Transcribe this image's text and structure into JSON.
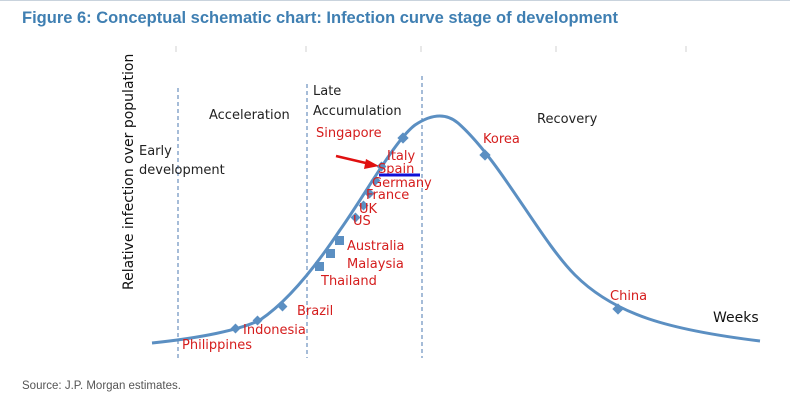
{
  "figure": {
    "title": "Figure 6: Conceptual schematic chart: Infection curve stage of development",
    "source": "Source: J.P. Morgan estimates."
  },
  "axes": {
    "ylabel": "Relative infection over population",
    "xlabel": "Weeks"
  },
  "phases": {
    "early_line1": "Early",
    "early_line2": "development",
    "acceleration": "Acceleration",
    "late_line1": "Late",
    "late_line2": "Accumulation",
    "recovery": "Recovery"
  },
  "countries": {
    "philippines": "Philippines",
    "indonesia": "Indonesia",
    "brazil": "Brazil",
    "thailand": "Thailand",
    "malaysia": "Malaysia",
    "australia": "Australia",
    "us": "US",
    "uk": "UK",
    "france": "France",
    "germany": "Germany",
    "spain": "Spain",
    "italy": "Italy",
    "singapore": "Singapore",
    "korea": "Korea",
    "china": "China"
  },
  "colors": {
    "curve": "#5b8fc2",
    "country_text": "#d51d1d",
    "title": "#3f7fb2",
    "highlight_bar": "#1010d8",
    "arrow": "#e01010",
    "divider": "#6a8fbf"
  }
}
